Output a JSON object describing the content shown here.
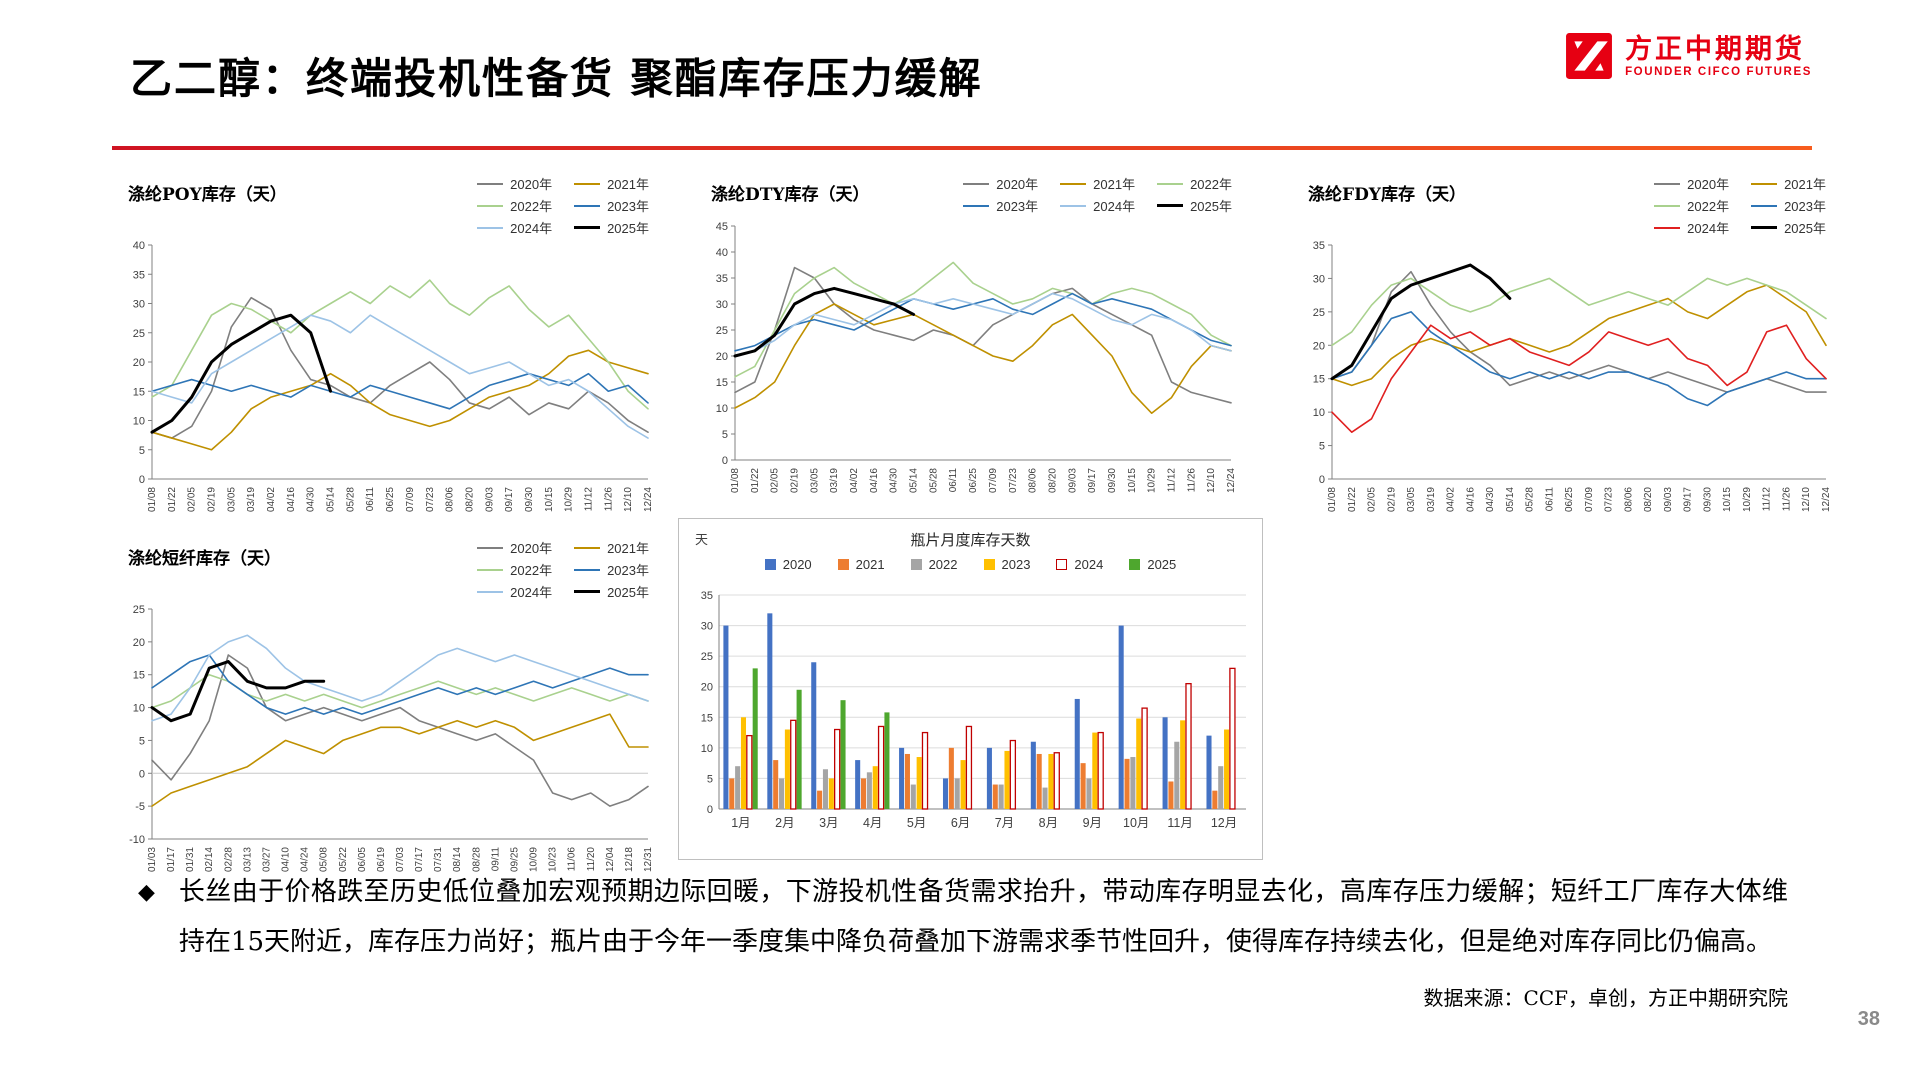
{
  "page": {
    "title": "乙二醇：终端投机性备货 聚酯库存压力缓解",
    "bullet": "◆",
    "commentary": "长丝由于价格跌至历史低位叠加宏观预期边际回暖，下游投机性备货需求抬升，带动库存明显去化，高库存压力缓解；短纤工厂库存大体维持在15天附近，库存压力尚好；瓶片由于今年一季度集中降负荷叠加下游需求季节性回升，使得库存持续去化，但是绝对库存同比仍偏高。",
    "source_note": "数据来源：CCF，卓创，方正中期研究院",
    "page_number": "38"
  },
  "logo": {
    "brand_cn": "方正中期期货",
    "brand_en": "FOUNDER CIFCO FUTURES"
  },
  "theme": {
    "brand_red": "#e60012",
    "rule_left": "#cf1322",
    "rule_right": "#f75c1e"
  },
  "chart_data": [
    {
      "id": "poy",
      "type": "line",
      "title": "涤纶POY库存（天）",
      "ylim": [
        0,
        40
      ],
      "ytick_step": 5,
      "legend_cols": 2,
      "legend_position": "top-right",
      "grid": false,
      "x": [
        "01/08",
        "01/22",
        "02/05",
        "02/19",
        "03/05",
        "03/19",
        "04/02",
        "04/16",
        "04/30",
        "05/14",
        "05/28",
        "06/11",
        "06/25",
        "07/09",
        "07/23",
        "08/06",
        "08/20",
        "09/03",
        "09/17",
        "09/30",
        "10/15",
        "10/29",
        "11/12",
        "11/26",
        "12/10",
        "12/24"
      ],
      "series": [
        {
          "name": "2020年",
          "color": "#7f7f7f",
          "width": 1.6,
          "values": [
            8,
            7,
            9,
            15,
            26,
            31,
            29,
            22,
            17,
            16,
            14,
            13,
            16,
            18,
            20,
            17,
            13,
            12,
            14,
            11,
            13,
            12,
            15,
            13,
            10,
            8
          ]
        },
        {
          "name": "2021年",
          "color": "#bf9000",
          "width": 1.6,
          "values": [
            8,
            7,
            6,
            5,
            8,
            12,
            14,
            15,
            16,
            18,
            16,
            13,
            11,
            10,
            9,
            10,
            12,
            14,
            15,
            16,
            18,
            21,
            22,
            20,
            19,
            18
          ]
        },
        {
          "name": "2022年",
          "color": "#a9d18e",
          "width": 1.6,
          "values": [
            14,
            16,
            22,
            28,
            30,
            29,
            27,
            25,
            28,
            30,
            32,
            30,
            33,
            31,
            34,
            30,
            28,
            31,
            33,
            29,
            26,
            28,
            24,
            20,
            15,
            12
          ]
        },
        {
          "name": "2023年",
          "color": "#2e75b6",
          "width": 1.6,
          "values": [
            15,
            16,
            17,
            16,
            15,
            16,
            15,
            14,
            16,
            15,
            14,
            16,
            15,
            14,
            13,
            12,
            14,
            16,
            17,
            18,
            17,
            16,
            18,
            15,
            16,
            13
          ]
        },
        {
          "name": "2024年",
          "color": "#9dc3e6",
          "width": 1.6,
          "values": [
            15,
            14,
            13,
            18,
            20,
            22,
            24,
            26,
            28,
            27,
            25,
            28,
            26,
            24,
            22,
            20,
            18,
            19,
            20,
            18,
            16,
            17,
            15,
            12,
            9,
            7
          ]
        },
        {
          "name": "2025年",
          "color": "#000000",
          "width": 3,
          "values": [
            8,
            10,
            14,
            20,
            23,
            25,
            27,
            28,
            25,
            15,
            null,
            null,
            null,
            null,
            null,
            null,
            null,
            null,
            null,
            null,
            null,
            null,
            null,
            null,
            null,
            null
          ]
        }
      ]
    },
    {
      "id": "dty",
      "type": "line",
      "title": "涤纶DTY库存（天）",
      "ylim": [
        0,
        45
      ],
      "ytick_step": 5,
      "legend_cols": 3,
      "legend_position": "top-right",
      "grid": false,
      "x": [
        "01/08",
        "01/22",
        "02/05",
        "02/19",
        "03/05",
        "03/19",
        "04/02",
        "04/16",
        "04/30",
        "05/14",
        "05/28",
        "06/11",
        "06/25",
        "07/09",
        "07/23",
        "08/06",
        "08/20",
        "09/03",
        "09/17",
        "09/30",
        "10/15",
        "10/29",
        "11/12",
        "11/26",
        "12/10",
        "12/24"
      ],
      "series": [
        {
          "name": "2020年",
          "color": "#7f7f7f",
          "width": 1.6,
          "values": [
            13,
            15,
            25,
            37,
            35,
            30,
            27,
            25,
            24,
            23,
            25,
            24,
            22,
            26,
            28,
            30,
            32,
            33,
            30,
            28,
            26,
            24,
            15,
            13,
            12,
            11
          ]
        },
        {
          "name": "2021年",
          "color": "#bf9000",
          "width": 1.6,
          "values": [
            10,
            12,
            15,
            22,
            28,
            30,
            28,
            26,
            27,
            28,
            26,
            24,
            22,
            20,
            19,
            22,
            26,
            28,
            24,
            20,
            13,
            9,
            12,
            18,
            22,
            21
          ]
        },
        {
          "name": "2022年",
          "color": "#a9d18e",
          "width": 1.6,
          "values": [
            16,
            18,
            25,
            32,
            35,
            37,
            34,
            32,
            30,
            32,
            35,
            38,
            34,
            32,
            30,
            31,
            33,
            32,
            30,
            32,
            33,
            32,
            30,
            28,
            24,
            22
          ]
        },
        {
          "name": "2023年",
          "color": "#2e75b6",
          "width": 1.6,
          "values": [
            21,
            22,
            24,
            26,
            27,
            26,
            25,
            27,
            29,
            31,
            30,
            29,
            30,
            31,
            29,
            28,
            30,
            32,
            30,
            31,
            30,
            29,
            27,
            25,
            23,
            22
          ]
        },
        {
          "name": "2024年",
          "color": "#9dc3e6",
          "width": 1.6,
          "values": [
            20,
            21,
            23,
            26,
            28,
            27,
            26,
            28,
            30,
            31,
            30,
            31,
            30,
            29,
            28,
            30,
            32,
            31,
            29,
            27,
            26,
            28,
            27,
            25,
            22,
            21
          ]
        },
        {
          "name": "2025年",
          "color": "#000000",
          "width": 3,
          "values": [
            20,
            21,
            24,
            30,
            32,
            33,
            32,
            31,
            30,
            28,
            null,
            null,
            null,
            null,
            null,
            null,
            null,
            null,
            null,
            null,
            null,
            null,
            null,
            null,
            null,
            null
          ]
        }
      ]
    },
    {
      "id": "fdy",
      "type": "line",
      "title": "涤纶FDY库存（天）",
      "ylim": [
        0,
        35
      ],
      "ytick_step": 5,
      "legend_cols": 2,
      "legend_position": "top-right",
      "grid": false,
      "x": [
        "01/08",
        "01/22",
        "02/05",
        "02/19",
        "03/05",
        "03/19",
        "04/02",
        "04/16",
        "04/30",
        "05/14",
        "05/28",
        "06/11",
        "06/25",
        "07/09",
        "07/23",
        "08/06",
        "08/20",
        "09/03",
        "09/17",
        "09/30",
        "10/15",
        "10/29",
        "11/12",
        "11/26",
        "12/10",
        "12/24"
      ],
      "series": [
        {
          "name": "2020年",
          "color": "#7f7f7f",
          "width": 1.6,
          "values": [
            15,
            16,
            20,
            28,
            31,
            26,
            22,
            19,
            17,
            14,
            15,
            16,
            15,
            16,
            17,
            16,
            15,
            16,
            15,
            14,
            13,
            14,
            15,
            14,
            13,
            13
          ]
        },
        {
          "name": "2021年",
          "color": "#bf9000",
          "width": 1.6,
          "values": [
            15,
            14,
            15,
            18,
            20,
            21,
            20,
            19,
            20,
            21,
            20,
            19,
            20,
            22,
            24,
            25,
            26,
            27,
            25,
            24,
            26,
            28,
            29,
            27,
            25,
            20
          ]
        },
        {
          "name": "2022年",
          "color": "#a9d18e",
          "width": 1.6,
          "values": [
            20,
            22,
            26,
            29,
            30,
            28,
            26,
            25,
            26,
            28,
            29,
            30,
            28,
            26,
            27,
            28,
            27,
            26,
            28,
            30,
            29,
            30,
            29,
            28,
            26,
            24
          ]
        },
        {
          "name": "2023年",
          "color": "#2e75b6",
          "width": 1.6,
          "values": [
            15,
            16,
            20,
            24,
            25,
            22,
            20,
            18,
            16,
            15,
            16,
            15,
            16,
            15,
            16,
            16,
            15,
            14,
            12,
            11,
            13,
            14,
            15,
            16,
            15,
            15
          ]
        },
        {
          "name": "2024年",
          "color": "#e02020",
          "width": 1.6,
          "values": [
            10,
            7,
            9,
            15,
            19,
            23,
            21,
            22,
            20,
            21,
            19,
            18,
            17,
            19,
            22,
            21,
            20,
            21,
            18,
            17,
            14,
            16,
            22,
            23,
            18,
            15
          ]
        },
        {
          "name": "2025年",
          "color": "#000000",
          "width": 3,
          "values": [
            15,
            17,
            22,
            27,
            29,
            30,
            31,
            32,
            30,
            27,
            null,
            null,
            null,
            null,
            null,
            null,
            null,
            null,
            null,
            null,
            null,
            null,
            null,
            null,
            null,
            null
          ]
        }
      ]
    },
    {
      "id": "staple",
      "type": "line",
      "title": "涤纶短纤库存（天）",
      "ylim": [
        -10,
        25
      ],
      "ytick_step": 5,
      "legend_cols": 2,
      "legend_position": "top-right",
      "grid": false,
      "x": [
        "01/03",
        "01/17",
        "01/31",
        "02/14",
        "02/28",
        "03/13",
        "03/27",
        "04/10",
        "04/24",
        "05/08",
        "05/22",
        "06/05",
        "06/19",
        "07/03",
        "07/17",
        "07/31",
        "08/14",
        "08/28",
        "09/11",
        "09/25",
        "10/09",
        "10/23",
        "11/06",
        "11/20",
        "12/04",
        "12/18",
        "12/31"
      ],
      "series": [
        {
          "name": "2020年",
          "color": "#7f7f7f",
          "width": 1.6,
          "values": [
            2,
            -1,
            3,
            8,
            18,
            16,
            10,
            8,
            9,
            10,
            9,
            8,
            9,
            10,
            8,
            7,
            6,
            5,
            6,
            4,
            2,
            -3,
            -4,
            -3,
            -5,
            -4,
            -2
          ]
        },
        {
          "name": "2021年",
          "color": "#bf9000",
          "width": 1.6,
          "values": [
            -5,
            -3,
            -2,
            -1,
            0,
            1,
            3,
            5,
            4,
            3,
            5,
            6,
            7,
            7,
            6,
            7,
            8,
            7,
            8,
            7,
            5,
            6,
            7,
            8,
            9,
            4,
            4
          ]
        },
        {
          "name": "2022年",
          "color": "#a9d18e",
          "width": 1.6,
          "values": [
            10,
            11,
            13,
            15,
            14,
            12,
            11,
            12,
            11,
            12,
            11,
            10,
            11,
            12,
            13,
            14,
            13,
            12,
            13,
            12,
            11,
            12,
            13,
            12,
            11,
            12,
            11
          ]
        },
        {
          "name": "2023年",
          "color": "#2e75b6",
          "width": 1.6,
          "values": [
            13,
            15,
            17,
            18,
            14,
            12,
            10,
            9,
            10,
            9,
            10,
            9,
            10,
            11,
            12,
            13,
            12,
            13,
            12,
            13,
            14,
            13,
            14,
            15,
            16,
            15,
            15
          ]
        },
        {
          "name": "2024年",
          "color": "#9dc3e6",
          "width": 1.6,
          "values": [
            8,
            9,
            13,
            18,
            20,
            21,
            19,
            16,
            14,
            13,
            12,
            11,
            12,
            14,
            16,
            18,
            19,
            18,
            17,
            18,
            17,
            16,
            15,
            14,
            13,
            12,
            11
          ]
        },
        {
          "name": "2025年",
          "color": "#000000",
          "width": 3,
          "values": [
            10,
            8,
            9,
            16,
            17,
            14,
            13,
            13,
            14,
            14,
            null,
            null,
            null,
            null,
            null,
            null,
            null,
            null,
            null,
            null,
            null,
            null,
            null,
            null,
            null,
            null,
            null
          ]
        }
      ]
    },
    {
      "id": "bottle",
      "type": "bar",
      "title": "瓶片月度库存天数",
      "unit_label": "天",
      "ylim": [
        0,
        35
      ],
      "ytick_step": 5,
      "legend_position": "top-center",
      "grid": true,
      "categories": [
        "1月",
        "2月",
        "3月",
        "4月",
        "5月",
        "6月",
        "7月",
        "8月",
        "9月",
        "10月",
        "11月",
        "12月"
      ],
      "series": [
        {
          "name": "2020",
          "color": "#4472c4",
          "values": [
            30,
            32,
            24,
            8,
            10,
            5,
            10,
            11,
            18,
            30,
            15,
            12
          ]
        },
        {
          "name": "2021",
          "color": "#ed7d31",
          "values": [
            5,
            8,
            3,
            5,
            9,
            10,
            4,
            9,
            7.5,
            8.2,
            4.5,
            3
          ]
        },
        {
          "name": "2022",
          "color": "#a5a5a5",
          "values": [
            7,
            5,
            6.5,
            6,
            4,
            5,
            4,
            3.5,
            5,
            8.5,
            11,
            7
          ]
        },
        {
          "name": "2023",
          "color": "#ffc000",
          "values": [
            15,
            13,
            5,
            7,
            8.5,
            8,
            9.5,
            9,
            12.5,
            14.8,
            14.5,
            13
          ]
        },
        {
          "name": "2024",
          "color": "#ffffff",
          "stroke": "#c00000",
          "values": [
            12,
            14.5,
            13,
            13.5,
            12.5,
            13.5,
            11.2,
            9.2,
            12.5,
            16.5,
            20.5,
            23
          ]
        },
        {
          "name": "2025",
          "color": "#4ea72e",
          "values": [
            23,
            19.5,
            17.8,
            15.8,
            null,
            null,
            null,
            null,
            null,
            null,
            null,
            null
          ]
        }
      ]
    }
  ]
}
